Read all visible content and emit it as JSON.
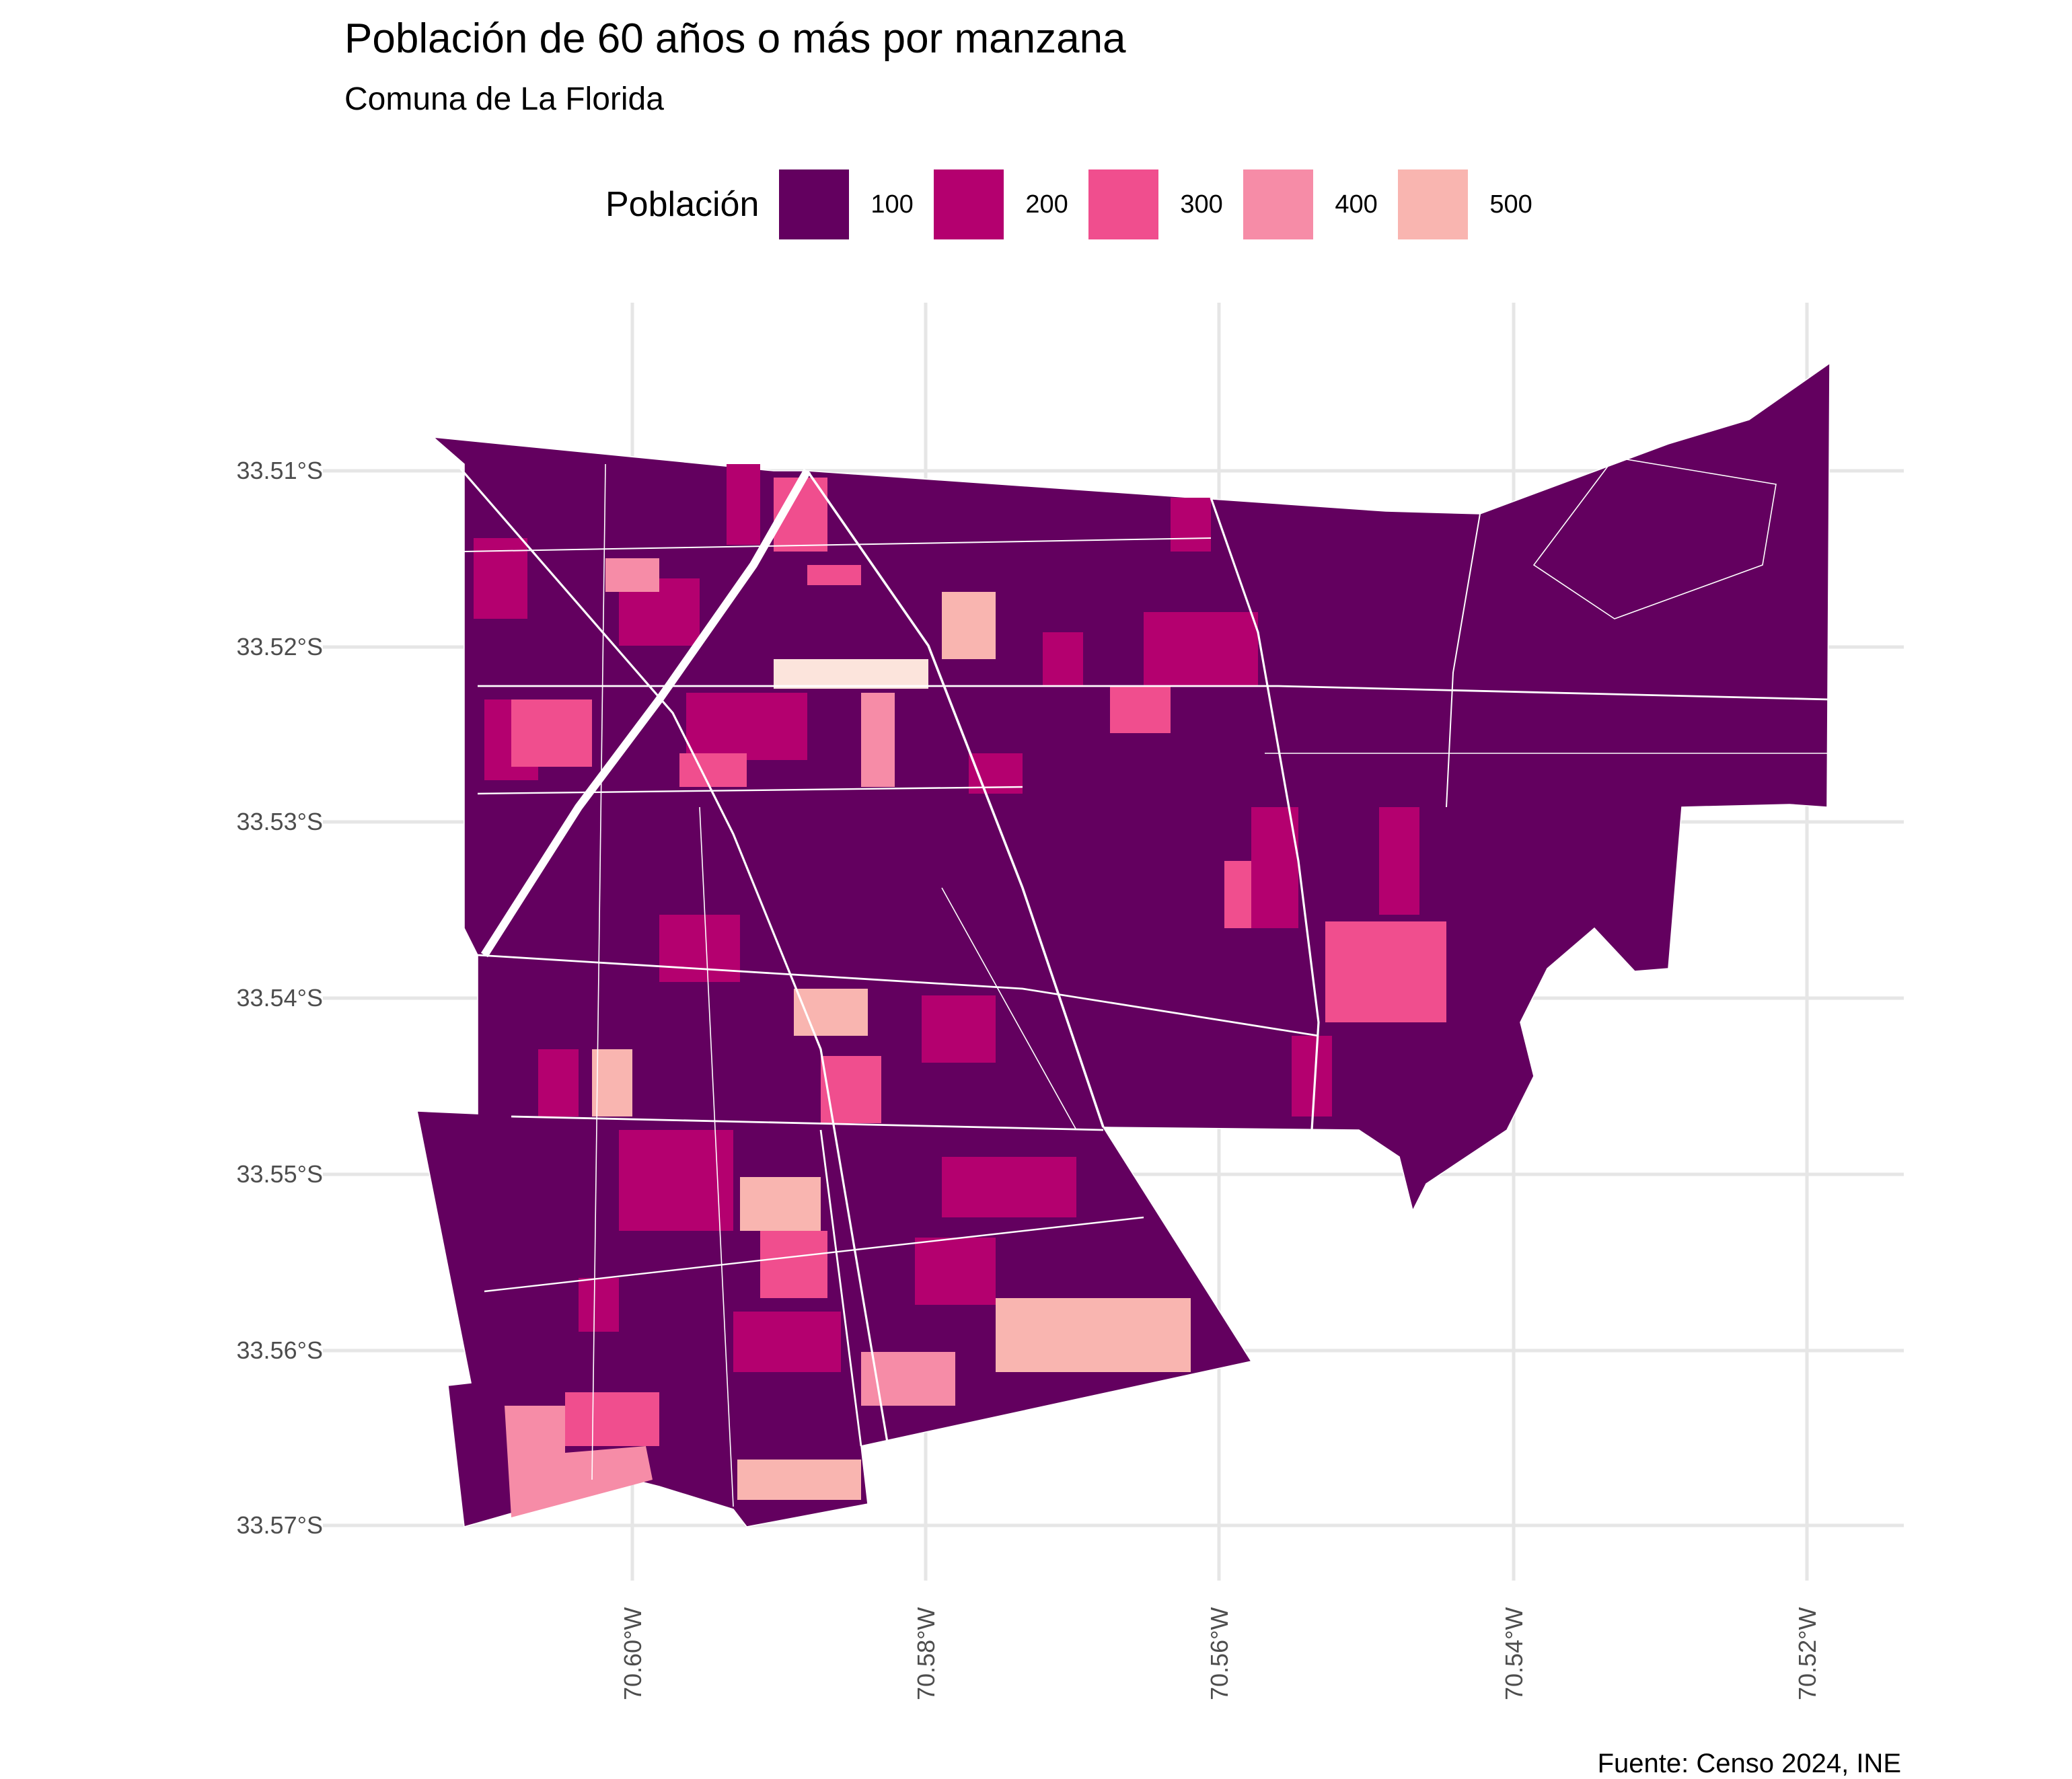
{
  "title": "Población de 60 años o más por manzana",
  "subtitle": "Comuna de La Florida",
  "caption": "Fuente: Censo 2024, INE",
  "legend": {
    "title": "Población",
    "items": [
      {
        "label": "100",
        "color": "#63005f"
      },
      {
        "label": "200",
        "color": "#b4006f"
      },
      {
        "label": "300",
        "color": "#f04e8e"
      },
      {
        "label": "400",
        "color": "#f68ca7"
      },
      {
        "label": "500",
        "color": "#f9b5b0"
      }
    ]
  },
  "axes": {
    "y_ticks": [
      "33.51°S",
      "33.52°S",
      "33.53°S",
      "33.54°S",
      "33.55°S",
      "33.56°S",
      "33.57°S"
    ],
    "x_ticks": [
      "70.60°W",
      "70.58°W",
      "70.56°W",
      "70.54°W",
      "70.52°W"
    ]
  }
}
